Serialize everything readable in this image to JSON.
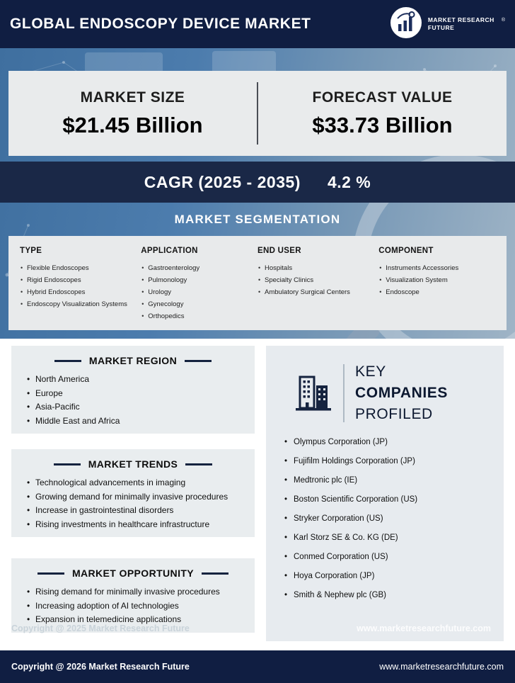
{
  "header": {
    "title": "GLOBAL ENDOSCOPY DEVICE MARKET",
    "brand": "MARKET RESEARCH FUTURE",
    "reg": "®"
  },
  "stats": {
    "market_size_label": "MARKET SIZE",
    "market_size_value": "$21.45 Billion",
    "forecast_label": "FORECAST VALUE",
    "forecast_value": "$33.73 Billion",
    "cagr_label": "CAGR (2025 - 2035)",
    "cagr_value": "4.2 %"
  },
  "segmentation": {
    "title": "MARKET SEGMENTATION",
    "columns": [
      {
        "heading": "TYPE",
        "items": [
          "Flexible Endoscopes",
          "Rigid Endoscopes",
          "Hybrid Endoscopes",
          "Endoscopy Visualization Systems"
        ]
      },
      {
        "heading": "APPLICATION",
        "items": [
          "Gastroenterology",
          "Pulmonology",
          "Urology",
          "Gynecology",
          "Orthopedics"
        ]
      },
      {
        "heading": "END USER",
        "items": [
          "Hospitals",
          "Specialty Clinics",
          "Ambulatory Surgical Centers"
        ]
      },
      {
        "heading": "COMPONENT",
        "items": [
          "Instruments Accessories",
          "Visualization System",
          "Endoscope"
        ]
      }
    ]
  },
  "region": {
    "title": "MARKET REGION",
    "items": [
      "North America",
      "Europe",
      "Asia-Pacific",
      "Middle East and Africa"
    ]
  },
  "trends": {
    "title": "MARKET TRENDS",
    "items": [
      "Technological advancements in imaging",
      "Growing demand for minimally invasive procedures",
      "Increase in gastrointestinal disorders",
      "Rising investments in healthcare infrastructure"
    ]
  },
  "opportunity": {
    "title": "MARKET OPPORTUNITY",
    "items": [
      "Rising demand for minimally invasive procedures",
      "Increasing adoption of AI technologies",
      "Expansion in telemedicine applications"
    ]
  },
  "companies": {
    "title_line1": "KEY",
    "title_line2": "COMPANIES",
    "title_line3": "PROFILED",
    "items": [
      "Olympus Corporation (JP)",
      "Fujifilm Holdings Corporation (JP)",
      "Medtronic plc (IE)",
      "Boston Scientific Corporation (US)",
      "Stryker Corporation (US)",
      "Karl Storz SE & Co. KG (DE)",
      "Conmed Corporation (US)",
      "Hoya Corporation (JP)",
      "Smith & Nephew plc (GB)"
    ]
  },
  "watermark": {
    "copyright": "Copyright @ 2025 Market Research Future",
    "site": "www.marketresearchfuture.com"
  },
  "footer": {
    "copyright": "Copyright @ 2026 Market Research Future",
    "site": "www.marketresearchfuture.com"
  },
  "colors": {
    "navy": "#101e42",
    "band_navy": "#1a2847",
    "hero_blue": "#4c7cad",
    "panel_gray": "#e9edef",
    "seg_gray": "#e8eaeb",
    "white": "#ffffff"
  }
}
